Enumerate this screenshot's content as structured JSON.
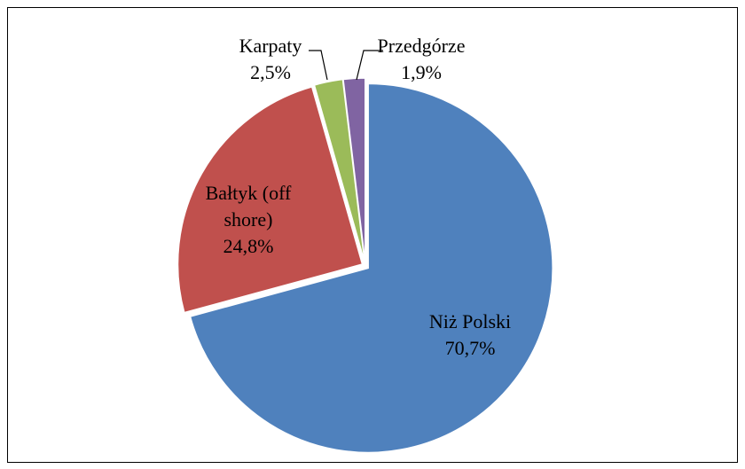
{
  "chart_data": {
    "type": "pie",
    "categories": [
      "Niż Polski",
      "Bałtyk (off shore)",
      "Karpaty",
      "Przedgórze"
    ],
    "values": [
      70.7,
      24.8,
      2.5,
      1.9
    ],
    "value_labels": [
      "70,7%",
      "24,8%",
      "2,5%",
      "1,9%"
    ],
    "colors": [
      "#4f81bd",
      "#c0504d",
      "#9bbb59",
      "#8064a2"
    ]
  }
}
